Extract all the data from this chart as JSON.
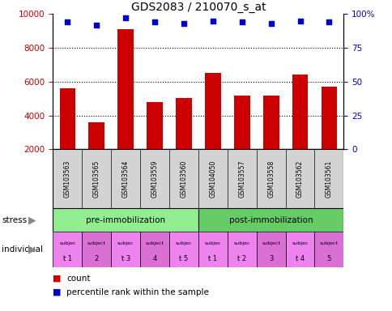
{
  "title": "GDS2083 / 210070_s_at",
  "samples": [
    "GSM103563",
    "GSM103565",
    "GSM103564",
    "GSM103559",
    "GSM103560",
    "GSM104050",
    "GSM103557",
    "GSM103558",
    "GSM103562",
    "GSM103561"
  ],
  "counts": [
    5600,
    3600,
    9100,
    4800,
    5050,
    6500,
    5200,
    5200,
    6400,
    5700
  ],
  "percentiles": [
    94,
    92,
    97,
    94,
    93,
    95,
    94,
    93,
    95,
    94
  ],
  "bar_color": "#cc0000",
  "dot_color": "#0000cc",
  "ylim_left": [
    2000,
    10000
  ],
  "ylim_right": [
    0,
    100
  ],
  "yticks_left": [
    2000,
    4000,
    6000,
    8000,
    10000
  ],
  "yticks_right": [
    0,
    25,
    50,
    75,
    100
  ],
  "ytick_labels_right": [
    "0",
    "25",
    "50",
    "75",
    "100%"
  ],
  "pre_label": "pre-immobilization",
  "post_label": "post-immobilization",
  "stress_color": "#90ee90",
  "post_stress_color": "#66cc66",
  "individual_labels_top": [
    "subjec",
    "subject",
    "subjec",
    "subject",
    "subjec",
    "subjec",
    "subjec",
    "subject",
    "subjec",
    "subject"
  ],
  "individual_labels_bot": [
    "t 1",
    "2",
    "t 3",
    "4",
    "t 5",
    "t 1",
    "t 2",
    "3",
    "t 4",
    "5"
  ],
  "individual_colors": [
    "#ee82ee",
    "#da70d6",
    "#ee82ee",
    "#da70d6",
    "#ee82ee",
    "#ee82ee",
    "#ee82ee",
    "#da70d6",
    "#ee82ee",
    "#da70d6"
  ],
  "legend_count_color": "#cc0000",
  "legend_dot_color": "#0000cc",
  "left_axis_color": "#cc0000",
  "right_axis_color": "#0000cc",
  "sample_bg_color": "#d3d3d3",
  "grid_yticks": [
    4000,
    6000,
    8000
  ]
}
